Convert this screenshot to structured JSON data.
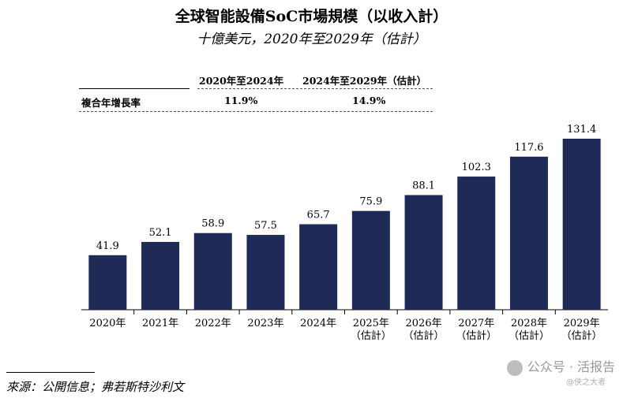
{
  "chart_data": {
    "type": "bar",
    "title": "全球智能設備SoC市場規模（以收入計）",
    "subtitle": "十億美元，2020年至2029年（估計）",
    "categories": [
      "2020年",
      "2021年",
      "2022年",
      "2023年",
      "2024年",
      "2025年\n（估計）",
      "2026年\n（估計）",
      "2027年\n（估計）",
      "2028年\n（估計）",
      "2029年\n（估計）"
    ],
    "values": [
      41.9,
      52.1,
      58.9,
      57.5,
      65.7,
      75.9,
      88.1,
      102.3,
      117.6,
      131.4
    ],
    "value_labels": [
      "41.9",
      "52.1",
      "58.9",
      "57.5",
      "65.7",
      "75.9",
      "88.1",
      "102.3",
      "117.6",
      "131.4"
    ],
    "ylim": [
      0,
      131.4
    ],
    "xlabel": "",
    "ylabel": "",
    "grid": false,
    "bar_color": "#1f2a56"
  },
  "cagr_table": {
    "headers": [
      "2020年至2024年",
      "2024年至2029年（估計）"
    ],
    "row_label": "複合年增長率",
    "values": [
      "11.9%",
      "14.9%"
    ]
  },
  "source": "來源：公開信息；弗若斯特沙利文",
  "watermark": {
    "text": "公众号 · 活报告",
    "sub": "@侠之大者"
  }
}
